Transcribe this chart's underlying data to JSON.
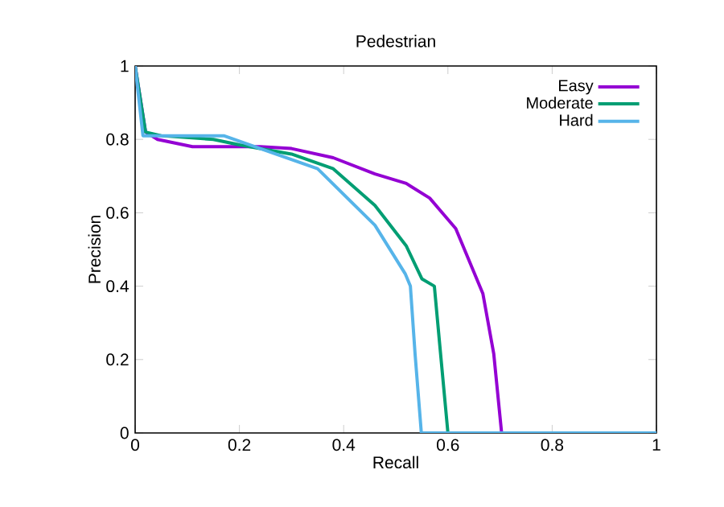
{
  "chart_data": {
    "type": "line",
    "title": "Pedestrian",
    "xlabel": "Recall",
    "ylabel": "Precision",
    "xlim": [
      0,
      1
    ],
    "ylim": [
      0,
      1
    ],
    "xticks": [
      0,
      0.2,
      0.4,
      0.6,
      0.8,
      1
    ],
    "yticks": [
      0,
      0.2,
      0.4,
      0.6,
      0.8,
      1
    ],
    "legend": "top right",
    "grid": false,
    "marker": "none",
    "line_style": "solid",
    "series": [
      {
        "name": "Easy",
        "color": "#9400d3",
        "x": [
          0,
          0.02,
          0.043,
          0.11,
          0.24,
          0.3,
          0.38,
          0.46,
          0.52,
          0.565,
          0.615,
          0.667,
          0.688,
          0.703,
          1
        ],
        "values": [
          1,
          0.82,
          0.8,
          0.78,
          0.78,
          0.775,
          0.75,
          0.706,
          0.68,
          0.64,
          0.557,
          0.38,
          0.215,
          0,
          0
        ]
      },
      {
        "name": "Moderate",
        "color": "#009e73",
        "x": [
          0,
          0.02,
          0.05,
          0.15,
          0.2,
          0.3,
          0.38,
          0.46,
          0.52,
          0.55,
          0.574,
          0.584,
          0.6,
          1
        ],
        "values": [
          1,
          0.82,
          0.81,
          0.8,
          0.785,
          0.76,
          0.72,
          0.62,
          0.51,
          0.42,
          0.4,
          0.245,
          0,
          0
        ]
      },
      {
        "name": "Hard",
        "color": "#56b4e9",
        "x": [
          0,
          0.015,
          0.17,
          0.25,
          0.35,
          0.46,
          0.518,
          0.528,
          0.537,
          0.549,
          1
        ],
        "values": [
          1,
          0.81,
          0.81,
          0.77,
          0.72,
          0.566,
          0.434,
          0.4,
          0.215,
          0,
          0
        ]
      }
    ]
  }
}
